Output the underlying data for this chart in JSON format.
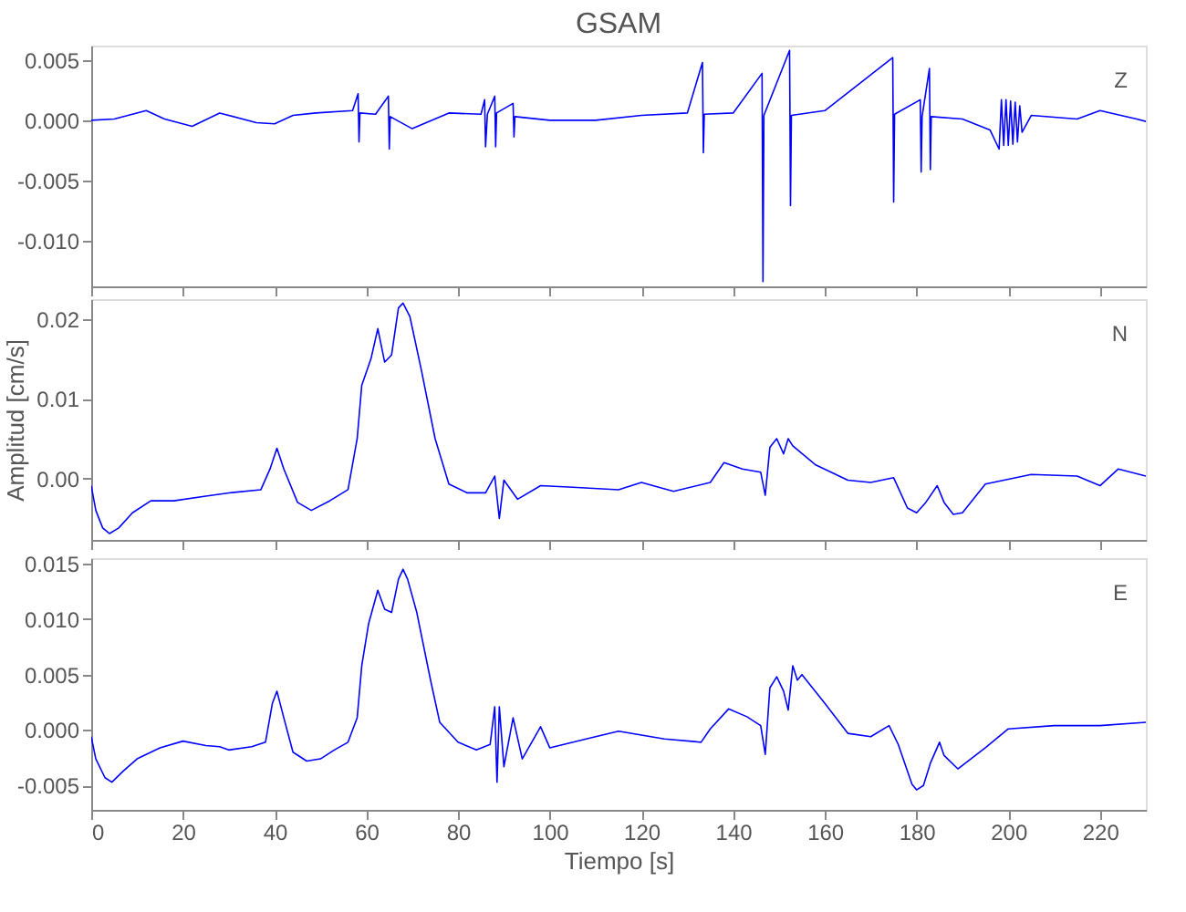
{
  "chart_data": [
    {
      "type": "line",
      "title": "GSAM",
      "annotations": [
        "Z"
      ],
      "tick_labels": "y",
      "grid": false,
      "marker": "none",
      "line_style": "solid",
      "xlim": [
        0,
        230
      ],
      "xticks": [
        0,
        20,
        40,
        60,
        80,
        100,
        120,
        140,
        160,
        180,
        200,
        220
      ],
      "ylim": [
        -0.0138,
        0.0062
      ],
      "yticks": [
        {
          "value": 0.005,
          "label": "0.005"
        },
        {
          "value": 0,
          "label": "0.000"
        },
        {
          "value": -0.005,
          "label": "-0.005"
        },
        {
          "value": -0.01,
          "label": "-0.010"
        }
      ],
      "series": [
        {
          "color": "#0000ff",
          "x": [
            0,
            5,
            12,
            16,
            22,
            28,
            36,
            40,
            44,
            49,
            57,
            58.2,
            58.4,
            58.6,
            62,
            64.8,
            65,
            65.2,
            70,
            78,
            85,
            85.8,
            86,
            86.4,
            88,
            88.2,
            88.4,
            92,
            92.2,
            92.4,
            100,
            110,
            120,
            130,
            133.3,
            133.5,
            133.7,
            140,
            146.3,
            146.5,
            146.7,
            152.3,
            152.5,
            152.7,
            160,
            174.8,
            175,
            175.2,
            180.8,
            181,
            181.2,
            182.8,
            183,
            183.2,
            190,
            196,
            198,
            198.5,
            199,
            199.5,
            200,
            200.5,
            201,
            201.5,
            202,
            202.5,
            203,
            205,
            215,
            220,
            228,
            230
          ],
          "values": [
            0,
            0.0001,
            0.0008,
            0.0001,
            -0.0005,
            0.0006,
            -0.0002,
            -0.0003,
            0.0004,
            0.0006,
            0.0008,
            0.0022,
            -0.0018,
            0.0006,
            0.0005,
            0.002,
            -0.0024,
            0.0003,
            -0.0007,
            0.0006,
            0.0005,
            0.0017,
            -0.0022,
            0.0005,
            0.002,
            -0.0022,
            0.0006,
            0.0014,
            -0.0014,
            0.0003,
            0,
            0,
            0.0004,
            0.0006,
            0.0048,
            -0.0027,
            0.0005,
            0.0006,
            0.0039,
            -0.0134,
            0.0004,
            0.0058,
            -0.0071,
            0.0004,
            0.0008,
            0.0052,
            -0.0068,
            0.0005,
            0.0017,
            -0.0043,
            0.0003,
            0.0043,
            -0.0041,
            0.0003,
            0.0001,
            -0.0008,
            -0.0024,
            0.0017,
            -0.0021,
            0.0017,
            -0.0021,
            0.0016,
            -0.002,
            0.0015,
            -0.0018,
            0.0012,
            -0.001,
            0.0004,
            0.0001,
            0.0008,
            0.0001,
            -0.0001
          ]
        }
      ]
    },
    {
      "type": "line",
      "ylabel": "Amplitud [cm/s]",
      "annotations": [
        "N"
      ],
      "tick_labels": "y",
      "grid": false,
      "marker": "none",
      "line_style": "solid",
      "xlim": [
        0,
        230
      ],
      "xticks": [
        0,
        20,
        40,
        60,
        80,
        100,
        120,
        140,
        160,
        180,
        200,
        220
      ],
      "ylim": [
        -0.0077,
        0.0225
      ],
      "yticks": [
        {
          "value": 0.02,
          "label": "0.02"
        },
        {
          "value": 0.01,
          "label": "0.01"
        },
        {
          "value": 0,
          "label": "0.00"
        }
      ],
      "series": [
        {
          "color": "#0000ff",
          "x": [
            0,
            1,
            2.5,
            4,
            6,
            9,
            13,
            18,
            25,
            30,
            37,
            39,
            40.5,
            42,
            45,
            48,
            52,
            56,
            58,
            59,
            61,
            62.5,
            64,
            65.5,
            67,
            68,
            69.5,
            72,
            75,
            78,
            82,
            86,
            88,
            89,
            90,
            93,
            98,
            105,
            115,
            120,
            127,
            135,
            138,
            142,
            146,
            147,
            148,
            149.5,
            151,
            152,
            153,
            158,
            165,
            170,
            175,
            178,
            180,
            182,
            184.5,
            186,
            188,
            190,
            195,
            205,
            215,
            220,
            224,
            230
          ],
          "values": [
            -0.0009,
            -0.004,
            -0.0062,
            -0.0069,
            -0.0062,
            -0.0043,
            -0.0028,
            -0.0028,
            -0.0022,
            -0.0018,
            -0.0014,
            0.0012,
            0.0038,
            0.0012,
            -0.003,
            -0.004,
            -0.0028,
            -0.0014,
            0.005,
            0.0117,
            0.015,
            0.0188,
            0.0146,
            0.0155,
            0.0214,
            0.022,
            0.0203,
            0.0136,
            0.005,
            -0.0007,
            -0.0018,
            -0.0018,
            0.0003,
            -0.005,
            -0.0002,
            -0.0026,
            -0.0009,
            -0.0011,
            -0.0014,
            -0.0005,
            -0.0016,
            -0.0005,
            0.002,
            0.0012,
            0.0008,
            -0.0021,
            0.0039,
            0.005,
            0.0031,
            0.005,
            0.0041,
            0.0017,
            -0.0002,
            -0.0005,
            0.0001,
            -0.0037,
            -0.0043,
            -0.003,
            -0.0009,
            -0.003,
            -0.0045,
            -0.0043,
            -0.0007,
            0.0005,
            0.0003,
            -0.0009,
            0.0012,
            0.0003
          ]
        }
      ]
    },
    {
      "type": "line",
      "xlabel": "Tiempo [s]",
      "annotations": [
        "E"
      ],
      "grid": false,
      "marker": "none",
      "line_style": "solid",
      "xlim": [
        0,
        230
      ],
      "xticks": [
        0,
        20,
        40,
        60,
        80,
        100,
        120,
        140,
        160,
        180,
        200,
        220
      ],
      "ylim": [
        -0.0072,
        0.0155
      ],
      "yticks": [
        {
          "value": 0.015,
          "label": "0.015"
        },
        {
          "value": 0.01,
          "label": "0.010"
        },
        {
          "value": 0.005,
          "label": "0.005"
        },
        {
          "value": 0,
          "label": "0.000"
        },
        {
          "value": -0.005,
          "label": "-0.005"
        }
      ],
      "series": [
        {
          "color": "#0000ff",
          "x": [
            0,
            1,
            3,
            4.5,
            7,
            10,
            15,
            20,
            25,
            28,
            30,
            35,
            38,
            39.5,
            40.5,
            42,
            44,
            47,
            50,
            53,
            56,
            58,
            59,
            60.5,
            62.5,
            64,
            65.5,
            67,
            68,
            69,
            71,
            74,
            76,
            80,
            84,
            87,
            88,
            88.5,
            89,
            90,
            92,
            94,
            98,
            100,
            110,
            115,
            125,
            133,
            135,
            139,
            143,
            146,
            147,
            148,
            149.5,
            151,
            152,
            153,
            154,
            155,
            160,
            165,
            170,
            174,
            176,
            179,
            180,
            181.5,
            183,
            185,
            186,
            189,
            195,
            200,
            210,
            220,
            230
          ],
          "values": [
            -0.0006,
            -0.0026,
            -0.0043,
            -0.0047,
            -0.0037,
            -0.0026,
            -0.0016,
            -0.001,
            -0.0014,
            -0.0015,
            -0.0018,
            -0.0015,
            -0.0011,
            0.0024,
            0.0035,
            0.0011,
            -0.002,
            -0.0028,
            -0.0026,
            -0.0018,
            -0.0011,
            0.0011,
            0.0058,
            0.0096,
            0.0126,
            0.0109,
            0.0106,
            0.0136,
            0.0145,
            0.0136,
            0.0106,
            0.0045,
            0.0007,
            -0.0011,
            -0.0018,
            -0.0013,
            0.0021,
            -0.0047,
            0.0021,
            -0.0033,
            0.0011,
            -0.0026,
            0.0003,
            -0.0016,
            -0.0006,
            -0.0001,
            -0.0008,
            -0.0011,
            0.0001,
            0.0019,
            0.0012,
            0.0004,
            -0.0022,
            0.0038,
            0.0048,
            0.0035,
            0.0018,
            0.0058,
            0.0045,
            0.005,
            0.0024,
            -0.0003,
            -0.0006,
            0.0004,
            -0.0013,
            -0.0049,
            -0.0054,
            -0.005,
            -0.003,
            -0.0011,
            -0.0023,
            -0.0035,
            -0.0016,
            0.0001,
            0.0004,
            0.0004,
            0.0007
          ]
        }
      ]
    }
  ]
}
